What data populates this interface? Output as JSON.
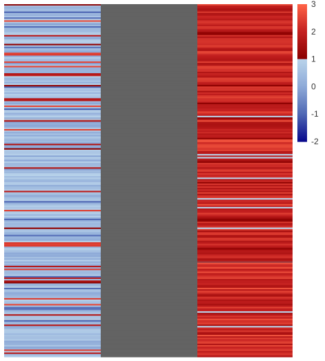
{
  "chart_data": {
    "type": "heatmap",
    "title": "",
    "xlabel": "",
    "ylabel": "",
    "columns": [
      {
        "name": "",
        "row_count": 240,
        "value_range": [
          -2,
          3
        ],
        "dominant_band": [
          0,
          1
        ],
        "frequent_values": [
          -1,
          0,
          0.5,
          1,
          1.8,
          2.5
        ],
        "missing": false
      },
      {
        "name": "",
        "row_count": 240,
        "missing": true,
        "na_color": "#636363"
      },
      {
        "name": "",
        "row_count": 240,
        "value_range": [
          1,
          3
        ],
        "dominant_band": [
          1.5,
          2.5
        ],
        "frequent_values": [
          1,
          1.8,
          2.2,
          2.6
        ],
        "missing": false
      }
    ],
    "color_scale": {
      "ticks": [
        3,
        2,
        1,
        0,
        -1,
        -2
      ],
      "min": -2,
      "max": 3,
      "stops": [
        {
          "value": -2,
          "color": "#08088c"
        },
        {
          "value": -1,
          "color": "#4f68b4"
        },
        {
          "value": 0,
          "color": "#8eaad8"
        },
        {
          "value": 1,
          "color": "#b9d3ea"
        },
        {
          "value": 1.02,
          "color": "#8b0000"
        },
        {
          "value": 2,
          "color": "#c42020"
        },
        {
          "value": 3,
          "color": "#ff6347"
        }
      ],
      "legend_position": "right"
    },
    "grid": false
  }
}
